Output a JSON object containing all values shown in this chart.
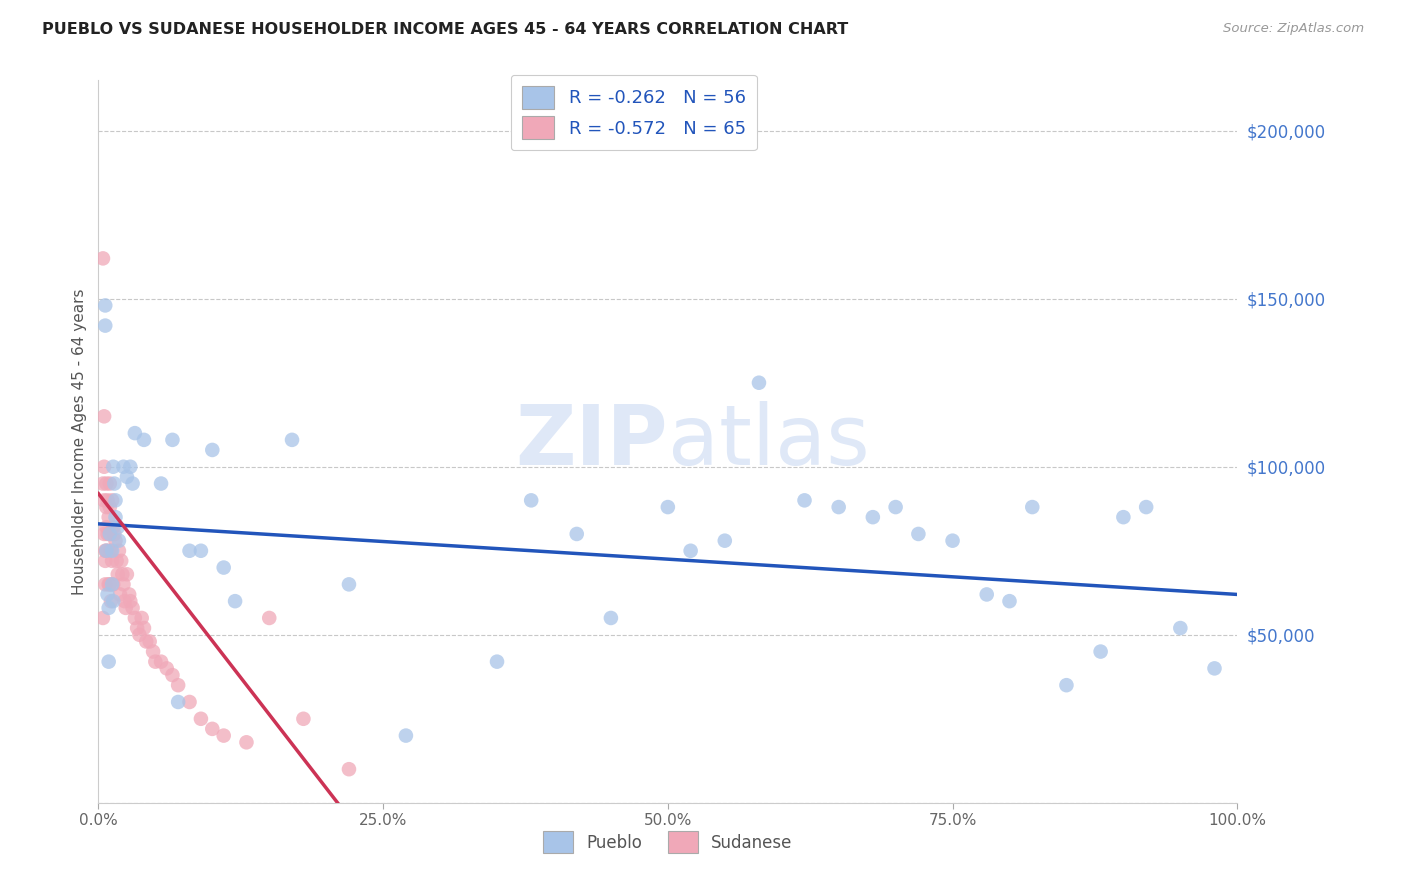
{
  "title": "PUEBLO VS SUDANESE HOUSEHOLDER INCOME AGES 45 - 64 YEARS CORRELATION CHART",
  "source": "Source: ZipAtlas.com",
  "ylabel": "Householder Income Ages 45 - 64 years",
  "watermark": "ZIPatlas",
  "pueblo_R": -0.262,
  "pueblo_N": 56,
  "sudanese_R": -0.572,
  "sudanese_N": 65,
  "pueblo_color": "#a8c4e8",
  "sudanese_color": "#f0a8b8",
  "pueblo_line_color": "#2255bb",
  "sudanese_line_color": "#cc3355",
  "background_color": "#ffffff",
  "grid_color": "#c8c8c8",
  "xlim": [
    0,
    1.0
  ],
  "ylim": [
    0,
    215000
  ],
  "yticks": [
    0,
    50000,
    100000,
    150000,
    200000
  ],
  "xticks": [
    0.0,
    0.25,
    0.5,
    0.75,
    1.0
  ],
  "xtick_labels": [
    "0.0%",
    "25.0%",
    "50.0%",
    "75.0%",
    "100.0%"
  ],
  "ytick_labels": [
    "",
    "$50,000",
    "$100,000",
    "$150,000",
    "$200,000"
  ],
  "pueblo_x": [
    0.006,
    0.006,
    0.007,
    0.008,
    0.009,
    0.009,
    0.01,
    0.012,
    0.012,
    0.013,
    0.013,
    0.014,
    0.015,
    0.015,
    0.017,
    0.018,
    0.022,
    0.025,
    0.028,
    0.03,
    0.032,
    0.04,
    0.055,
    0.065,
    0.07,
    0.08,
    0.09,
    0.1,
    0.11,
    0.12,
    0.17,
    0.22,
    0.27,
    0.35,
    0.38,
    0.42,
    0.45,
    0.5,
    0.52,
    0.55,
    0.58,
    0.62,
    0.65,
    0.68,
    0.7,
    0.72,
    0.75,
    0.78,
    0.8,
    0.82,
    0.85,
    0.88,
    0.9,
    0.92,
    0.95,
    0.98
  ],
  "pueblo_y": [
    148000,
    142000,
    75000,
    62000,
    58000,
    42000,
    80000,
    75000,
    65000,
    60000,
    100000,
    95000,
    90000,
    85000,
    82000,
    78000,
    100000,
    97000,
    100000,
    95000,
    110000,
    108000,
    95000,
    108000,
    30000,
    75000,
    75000,
    105000,
    70000,
    60000,
    108000,
    65000,
    20000,
    42000,
    90000,
    80000,
    55000,
    88000,
    75000,
    78000,
    125000,
    90000,
    88000,
    85000,
    88000,
    80000,
    78000,
    62000,
    60000,
    88000,
    35000,
    45000,
    85000,
    88000,
    52000,
    40000
  ],
  "sudanese_x": [
    0.004,
    0.004,
    0.004,
    0.005,
    0.005,
    0.005,
    0.005,
    0.006,
    0.006,
    0.006,
    0.007,
    0.007,
    0.007,
    0.007,
    0.008,
    0.008,
    0.009,
    0.009,
    0.009,
    0.01,
    0.01,
    0.01,
    0.01,
    0.011,
    0.011,
    0.012,
    0.012,
    0.013,
    0.013,
    0.014,
    0.015,
    0.016,
    0.017,
    0.018,
    0.019,
    0.02,
    0.021,
    0.022,
    0.023,
    0.024,
    0.025,
    0.027,
    0.028,
    0.03,
    0.032,
    0.034,
    0.036,
    0.038,
    0.04,
    0.042,
    0.045,
    0.048,
    0.05,
    0.055,
    0.06,
    0.065,
    0.07,
    0.08,
    0.09,
    0.1,
    0.11,
    0.13,
    0.15,
    0.18,
    0.22
  ],
  "sudanese_y": [
    162000,
    95000,
    55000,
    115000,
    100000,
    90000,
    80000,
    75000,
    72000,
    65000,
    95000,
    88000,
    82000,
    75000,
    90000,
    80000,
    85000,
    75000,
    65000,
    95000,
    88000,
    80000,
    65000,
    75000,
    60000,
    90000,
    72000,
    82000,
    65000,
    80000,
    78000,
    72000,
    68000,
    75000,
    62000,
    72000,
    68000,
    65000,
    60000,
    58000,
    68000,
    62000,
    60000,
    58000,
    55000,
    52000,
    50000,
    55000,
    52000,
    48000,
    48000,
    45000,
    42000,
    42000,
    40000,
    38000,
    35000,
    30000,
    25000,
    22000,
    20000,
    18000,
    55000,
    25000,
    10000
  ],
  "pueblo_trend_x0": 0.0,
  "pueblo_trend_y0": 83000,
  "pueblo_trend_x1": 1.0,
  "pueblo_trend_y1": 62000,
  "sudanese_trend_x0": 0.0,
  "sudanese_trend_y0": 92000,
  "sudanese_trend_x1": 0.21,
  "sudanese_trend_y1": 0
}
